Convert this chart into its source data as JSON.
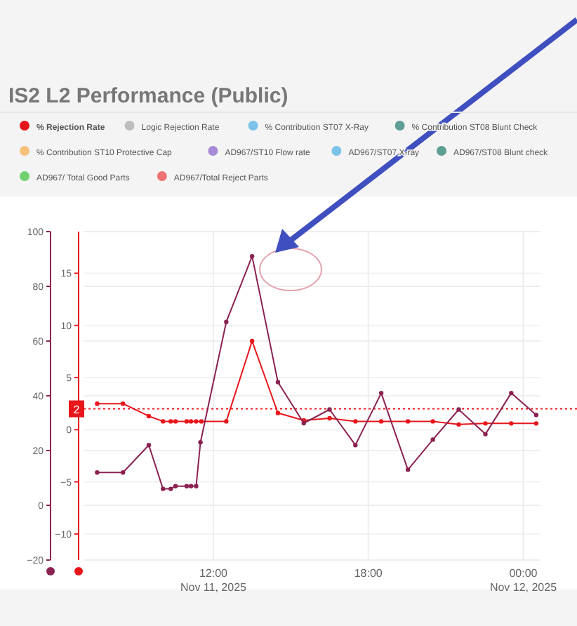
{
  "chart_data": {
    "type": "line",
    "title": "IS2 L2 Performance  (Public)",
    "series": [
      {
        "name": "% Rejection Rate",
        "color": "#e8151b",
        "axis": "y2",
        "x": [
          "2025-11-11T07:30",
          "2025-11-11T08:30",
          "2025-11-11T09:30",
          "2025-11-11T10:03",
          "2025-11-11T10:21",
          "2025-11-11T10:32",
          "2025-11-11T10:58",
          "2025-11-11T11:08",
          "2025-11-11T11:20",
          "2025-11-11T11:32",
          "2025-11-11T12:30",
          "2025-11-11T13:30",
          "2025-11-11T14:30",
          "2025-11-11T15:30",
          "2025-11-11T16:30",
          "2025-11-11T17:30",
          "2025-11-11T18:30",
          "2025-11-11T19:32",
          "2025-11-11T20:30",
          "2025-11-11T21:30",
          "2025-11-11T22:32",
          "2025-11-11T23:32",
          "2025-11-12T00:30"
        ],
        "values": [
          2.5,
          2.5,
          1.3,
          0.8,
          0.8,
          0.8,
          0.8,
          0.8,
          0.8,
          0.8,
          0.8,
          8.5,
          1.6,
          0.9,
          1.1,
          0.8,
          0.8,
          0.8,
          0.8,
          0.5,
          0.6,
          0.6,
          0.6
        ]
      },
      {
        "name": "Logic Rejection Rate",
        "color": "#bdbdbd"
      },
      {
        "name": "% Contribution ST07 X-Ray",
        "color": "#7cc3ea"
      },
      {
        "name": "% Contribution ST08 Blunt Check",
        "color": "#5f9e95"
      },
      {
        "name": "% Contribution ST10 Protective Cap",
        "color": "#f7c17a"
      },
      {
        "name": "AD967/ST10 Flow rate",
        "color": "#a78bd6"
      },
      {
        "name": "AD967/ST07 X-ray",
        "color": "#7cc3ea"
      },
      {
        "name": "AD967/ST08 Blunt check",
        "color": "#5f9e95"
      },
      {
        "name": "AD967/ Total Good Parts",
        "color": "#6fd16f"
      },
      {
        "name": "AD967/Total Reject Parts",
        "color": "#f07272"
      },
      {
        "color": "#8b2252",
        "axis": "y",
        "x": [
          "2025-11-11T07:30",
          "2025-11-11T08:30",
          "2025-11-11T09:30",
          "2025-11-11T10:03",
          "2025-11-11T10:21",
          "2025-11-11T10:32",
          "2025-11-11T10:58",
          "2025-11-11T11:08",
          "2025-11-11T11:20",
          "2025-11-11T11:30",
          "2025-11-11T12:30",
          "2025-11-11T13:30",
          "2025-11-11T14:30",
          "2025-11-11T15:30",
          "2025-11-11T16:30",
          "2025-11-11T17:30",
          "2025-11-11T18:30",
          "2025-11-11T19:32",
          "2025-11-11T20:30",
          "2025-11-11T21:30",
          "2025-11-11T22:32",
          "2025-11-11T23:32",
          "2025-11-12T00:30"
        ],
        "values": [
          12,
          12,
          22,
          6,
          6,
          7,
          7,
          7,
          7,
          23,
          67,
          91,
          45,
          30,
          35,
          22,
          41,
          13,
          24,
          35,
          26,
          41,
          33
        ]
      }
    ],
    "xlim": [
      "2025-11-11T07:00",
      "2025-11-12T00:40"
    ],
    "xticks": [
      {
        "value": "2025-11-11T12:00",
        "label": "12:00\nNov 11, 2025"
      },
      {
        "value": "2025-11-11T18:00",
        "label": "18:00"
      },
      {
        "value": "2025-11-12T00:00",
        "label": "00:00\nNov 12, 2025"
      }
    ],
    "ylim": [
      -20,
      100
    ],
    "yticks": [
      -20,
      0,
      20,
      40,
      60,
      80,
      100
    ],
    "y2lim": [
      -12.5,
      19
    ],
    "y2ticks": [
      -10,
      -5,
      0,
      5,
      10,
      15
    ],
    "ref_lines": [
      {
        "axis": "y2",
        "value": 2,
        "label": "2",
        "color": "#e8151b",
        "line_style": "dotted"
      }
    ],
    "grid": true,
    "legend": "top",
    "marker": "circle",
    "line_style": "solid"
  }
}
